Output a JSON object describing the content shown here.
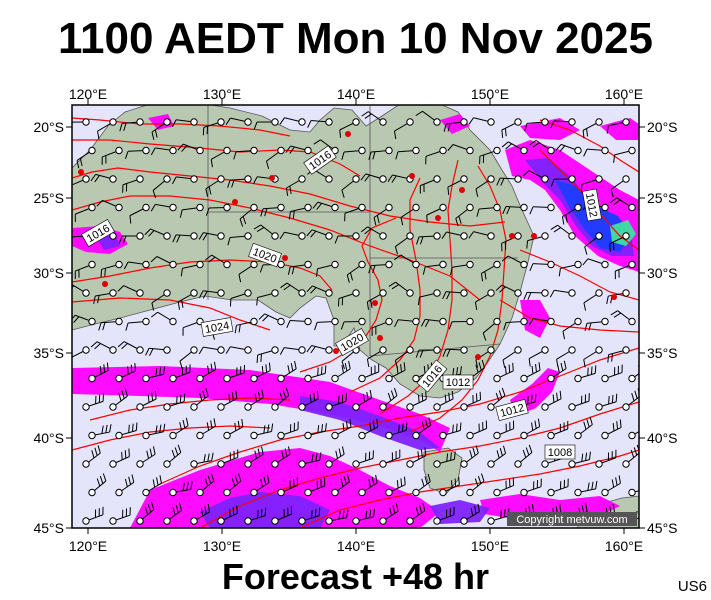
{
  "header": {
    "title": "1100 AEDT Mon 10 Nov 2025"
  },
  "footer": {
    "forecast": "Forecast +48 hr",
    "code": "US6"
  },
  "map": {
    "copyright": "Copyright metvuw.com",
    "lon_labels": [
      "120°E",
      "130°E",
      "140°E",
      "150°E",
      "160°E"
    ],
    "lat_labels": [
      "20°S",
      "25°S",
      "30°S",
      "35°S",
      "40°S",
      "45°S"
    ],
    "isobar_labels": [
      "1016",
      "1016",
      "1020",
      "1024",
      "1020",
      "1016",
      "1012",
      "1012",
      "1008",
      "1012"
    ],
    "colors": {
      "ocean": "#e4e4fb",
      "land": "#b9c8b0",
      "isobar": "#ff0000",
      "rain_light": "#ff00ff",
      "rain_medium": "#7f22ff",
      "rain_heavy": "#1e3cff",
      "rain_extreme": "#3fe0a0",
      "high_point": "#dd0000"
    }
  }
}
